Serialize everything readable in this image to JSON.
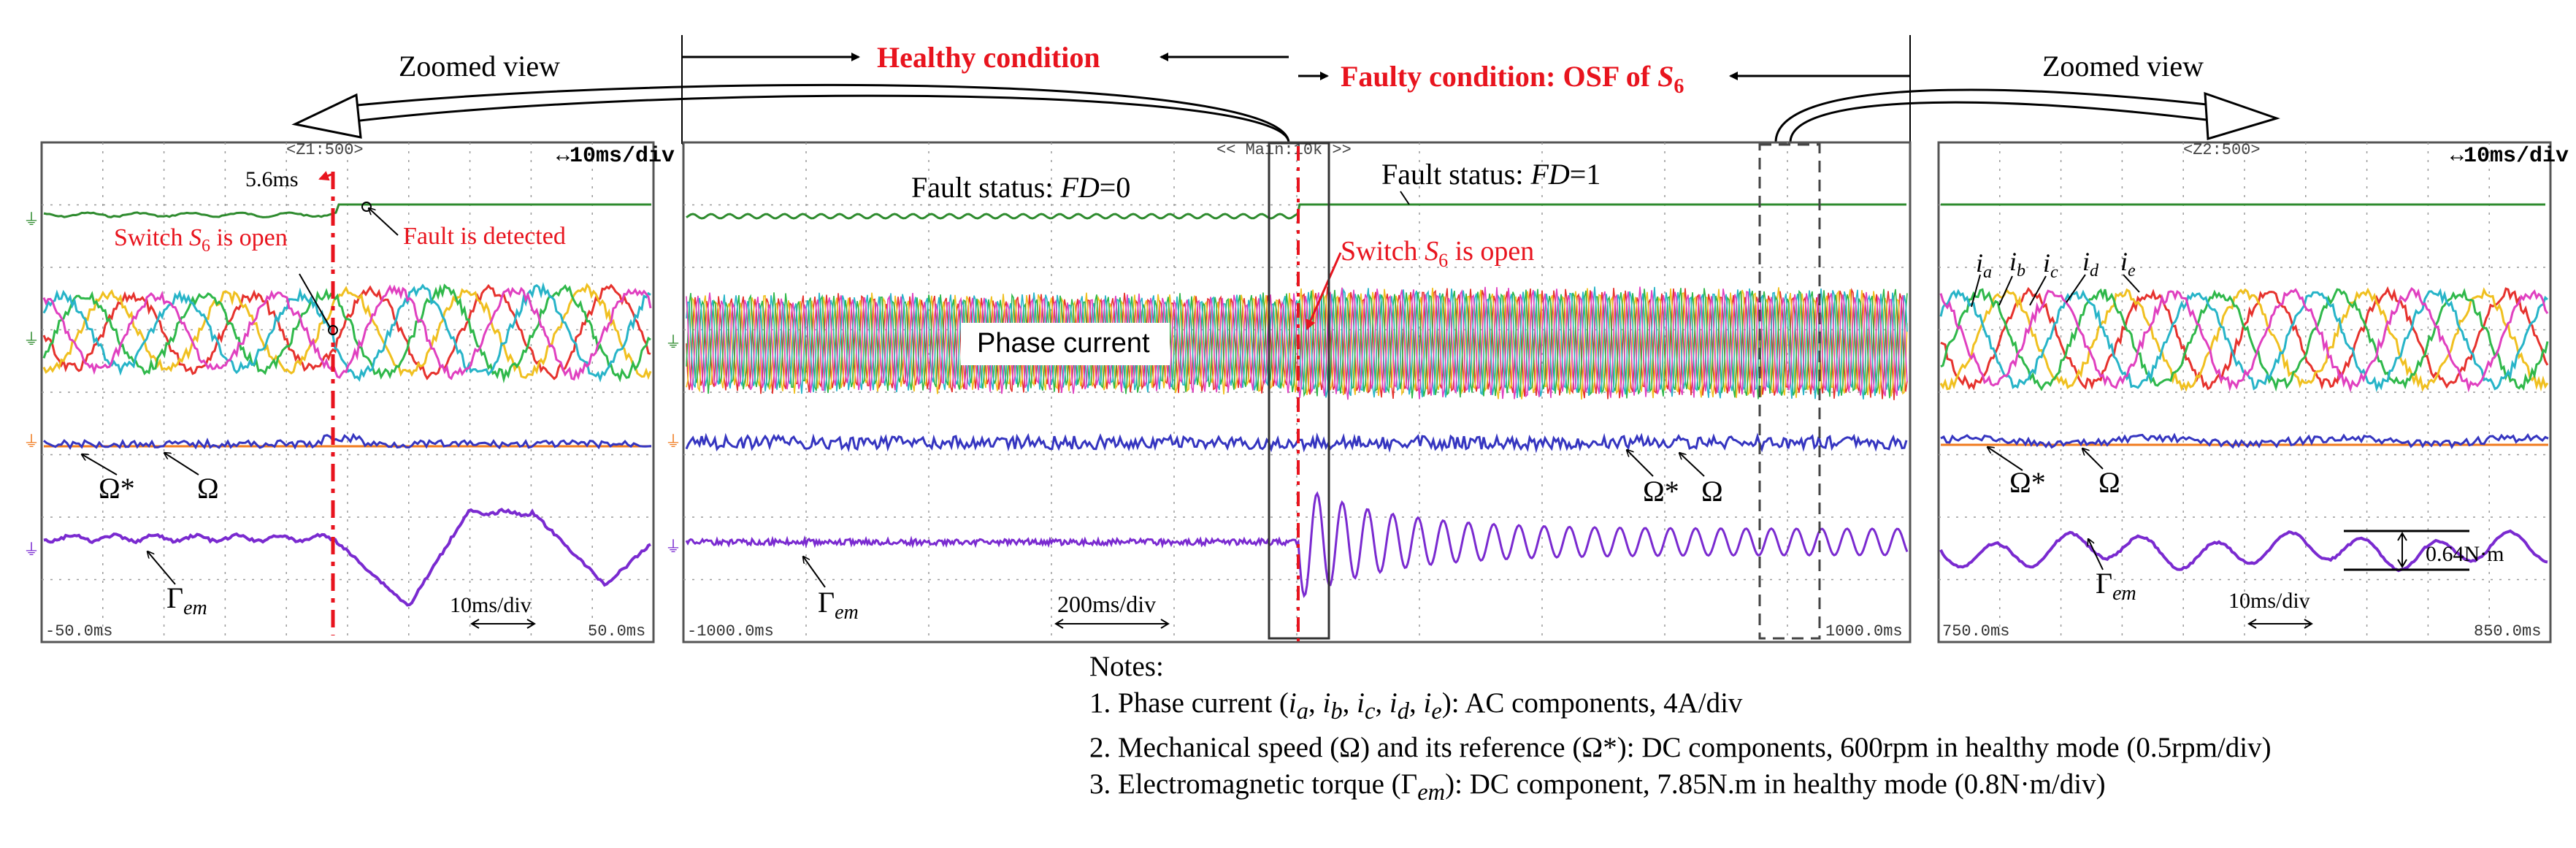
{
  "header": {
    "healthy": "Healthy  condition",
    "faulty_prefix": "Faulty condition: OSF of ",
    "switch_name": "S",
    "switch_sub": "6",
    "zoom_left": "Zoomed view",
    "zoom_right": "Zoomed view"
  },
  "panels": {
    "left": {
      "tag": "<Z1:500>",
      "timebase": "↔10ms/div",
      "x_start": "-50.0ms",
      "x_end": "50.0ms",
      "time_scale": "10ms/div",
      "delay": "5.6ms",
      "switch_open": "Switch S6 is open",
      "fault_detected": "Fault is detected",
      "omega_ref": "Ω*",
      "omega": "Ω",
      "torque": "Γem"
    },
    "main": {
      "tag": "<< Main:10k >>",
      "x_start": "-1000.0ms",
      "x_end": "1000.0ms",
      "time_scale": "200ms/div",
      "fd0": "Fault status: FD=0",
      "fd1": "Fault status: FD=1",
      "switch_open": "Switch S6 is open",
      "phase_current": "Phase current",
      "omega_ref": "Ω*",
      "omega": "Ω",
      "torque": "Γem"
    },
    "right": {
      "tag": "<Z2:500>",
      "timebase": "↔10ms/div",
      "x_start": "750.0ms",
      "x_end": "850.0ms",
      "time_scale": "10ms/div",
      "omega_ref": "Ω*",
      "omega": "Ω",
      "torque": "Γem",
      "ripple": "0.64N·m",
      "phase_labels": [
        "ia",
        "ib",
        "ic",
        "id",
        "ie"
      ]
    }
  },
  "notes": {
    "title": "Notes:",
    "n1": "1. Phase current (ia, ib, ic, id, ie): AC components, 4A/div",
    "n2": "2. Mechanical speed (Ω) and its reference (Ω*): DC components, 600rpm in healthy mode  (0.5rpm/div)",
    "n3": "3. Electromagnetic torque (Γem): DC component, 7.85N.m in healthy mode (0.8N·m/div)"
  },
  "colors": {
    "fault_status": "#2e8b2e",
    "phase_a": "#e6322d",
    "phase_b": "#f0c020",
    "phase_c": "#2fb84a",
    "phase_d": "#27b4c8",
    "phase_e": "#e040c0",
    "speed": "#3535c0",
    "speed_ref": "#f07a1e",
    "torque": "#7a2ad0",
    "annotation": "#e8141e"
  },
  "chart_data": [
    {
      "type": "line",
      "title": "Zoomed view (Z1)",
      "x_range_ms": [
        -50.0,
        50.0
      ],
      "x_div_ms": 10,
      "fault_time_ms": 0,
      "detection_delay_ms": 5.6,
      "series": [
        {
          "name": "Fault status FD",
          "values": "0 before detection, 1 after 5.6ms"
        },
        {
          "name": "Phase currents ia-ie",
          "scale": "4A/div"
        },
        {
          "name": "Ω*",
          "scale": "0.5rpm/div"
        },
        {
          "name": "Ω",
          "scale": "0.5rpm/div"
        },
        {
          "name": "Γem",
          "scale": "0.8N·m/div"
        }
      ]
    },
    {
      "type": "line",
      "title": "Main (10k)",
      "x_range_ms": [
        -1000.0,
        1000.0
      ],
      "x_div_ms": 200,
      "fault_status": [
        {
          "condition": "healthy",
          "FD": 0
        },
        {
          "condition": "faulty",
          "FD": 1
        }
      ]
    },
    {
      "type": "line",
      "title": "Zoomed view (Z2)",
      "x_range_ms": [
        750.0,
        850.0
      ],
      "x_div_ms": 10,
      "torque_ripple_Nm": 0.64
    }
  ]
}
